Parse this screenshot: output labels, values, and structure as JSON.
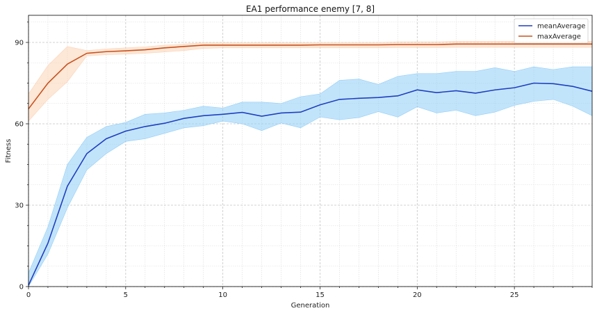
{
  "chart_data": {
    "type": "line",
    "title": "EA1 performance enemy [7, 8]",
    "xlabel": "Generation",
    "ylabel": "Fitness",
    "xlim": [
      0,
      29
    ],
    "ylim": [
      0,
      100
    ],
    "x_ticks": [
      0,
      5,
      10,
      15,
      20,
      25
    ],
    "y_ticks": [
      0,
      30,
      60,
      90
    ],
    "grid": true,
    "legend_position": "top-right",
    "x": [
      0,
      1,
      2,
      3,
      4,
      5,
      6,
      7,
      8,
      9,
      10,
      11,
      12,
      13,
      14,
      15,
      16,
      17,
      18,
      19,
      20,
      21,
      22,
      23,
      24,
      25,
      26,
      27,
      28,
      29
    ],
    "series": [
      {
        "name": "meanAverage",
        "color": "#1f3fbf",
        "band_color": "#8fcdf7",
        "values": [
          0.5,
          16,
          37,
          49,
          54.5,
          57.3,
          59,
          60.2,
          62,
          63,
          63.5,
          64.2,
          62.8,
          64,
          64.3,
          67,
          69,
          69.4,
          69.7,
          70.3,
          72.5,
          71.5,
          72.2,
          71.3,
          72.5,
          73.3,
          75,
          74.8,
          73.8,
          72
        ],
        "lower": [
          0,
          12,
          29,
          43,
          49,
          53.5,
          54.5,
          56.5,
          58.5,
          59.3,
          61,
          60,
          57.5,
          60.3,
          58.5,
          62.5,
          61.5,
          62.3,
          64.5,
          62.5,
          66.3,
          64,
          65,
          63,
          64.3,
          66.8,
          68.3,
          69,
          66.5,
          63
        ],
        "upper": [
          5,
          22,
          45,
          55,
          59,
          60.5,
          63.5,
          64,
          65,
          66.5,
          65.8,
          68,
          68,
          67.5,
          70,
          71,
          76,
          76.5,
          74.5,
          77.5,
          78.5,
          78.5,
          79.3,
          79.3,
          80.7,
          79.3,
          81,
          80,
          81,
          81
        ]
      },
      {
        "name": "maxAverage",
        "color": "#c8521e",
        "band_color": "#fbd3b6",
        "values": [
          65.5,
          75,
          82,
          86,
          86.6,
          86.9,
          87.3,
          88,
          88.5,
          89,
          89,
          89,
          89,
          89,
          89,
          89.1,
          89.1,
          89.1,
          89.1,
          89.2,
          89.2,
          89.2,
          89.4,
          89.4,
          89.4,
          89.4,
          89.4,
          89.4,
          89.4,
          89.4
        ],
        "lower": [
          61,
          69,
          75.5,
          85,
          85.5,
          85.7,
          86,
          86.5,
          87,
          87.8,
          88,
          88,
          88,
          88,
          88,
          88,
          88,
          88,
          88,
          88.1,
          88.1,
          88.1,
          88.2,
          88.2,
          88.2,
          88.2,
          88.2,
          88.2,
          88.2,
          88.2
        ],
        "upper": [
          71,
          81.5,
          88.5,
          87,
          87.6,
          88,
          88.4,
          89,
          89.4,
          89.9,
          89.9,
          89.9,
          89.9,
          89.9,
          89.9,
          90,
          90,
          90,
          90,
          90.2,
          90.2,
          90.2,
          90.4,
          90.4,
          90.4,
          90.4,
          90.4,
          90.4,
          90.4,
          90.4
        ]
      }
    ]
  }
}
